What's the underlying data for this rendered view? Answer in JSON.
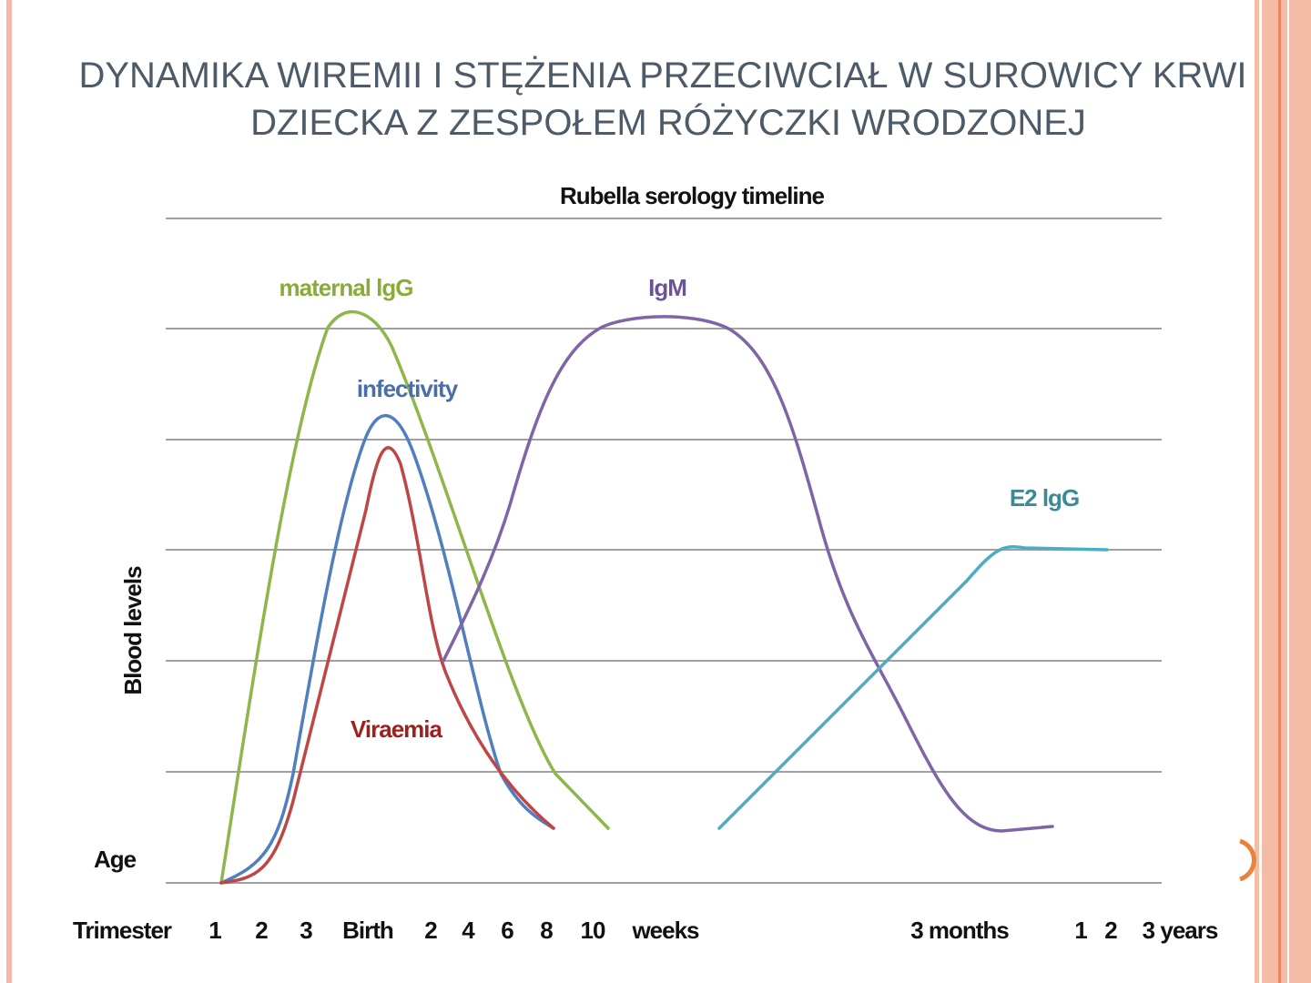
{
  "slide": {
    "title_lines": [
      "DYNAMIKA WIREMII I STĘŻENIA PRZECIWCIAŁ W SUROWICY KRWI",
      "DZIECKA Z ZESPOŁEM RÓŻYCZKI WRODZONEJ"
    ],
    "figure": {
      "title": "Rubella serology timeline",
      "y_label": "Blood levels",
      "age_label": "Age",
      "curve_labels": [
        "maternal lgG",
        "IgM",
        "infectivity",
        "E2 lgG",
        "Viraemia"
      ],
      "x_labels": [
        "Trimester",
        "1",
        "2",
        "3",
        "Birth",
        "2",
        "4",
        "6",
        "8",
        "10",
        "weeks",
        "3 months",
        "1",
        "2",
        "3 years"
      ]
    }
  }
}
